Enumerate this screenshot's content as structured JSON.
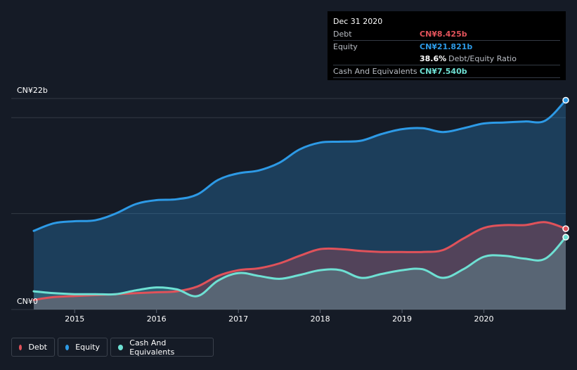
{
  "colors": {
    "background": "#151b26",
    "debt": "#e0525a",
    "equity": "#2d9ae6",
    "cash": "#6ee0d3",
    "gridline": "#333a44"
  },
  "tooltip": {
    "date": "Dec 31 2020",
    "debt_label": "Debt",
    "debt_value": "CN¥8.425b",
    "equity_label": "Equity",
    "equity_value": "CN¥21.821b",
    "ratio_value": "38.6%",
    "ratio_label": "Debt/Equity Ratio",
    "cash_label": "Cash And Equivalents",
    "cash_value": "CN¥7.540b"
  },
  "legend": {
    "debt": "Debt",
    "equity": "Equity",
    "cash": "Cash And Equivalents"
  },
  "chart_data": {
    "type": "area",
    "title": "",
    "xlabel": "",
    "ylabel": "",
    "y_top_label": "CN¥22b",
    "y_bottom_label": "CN¥0",
    "ylim": [
      0,
      22
    ],
    "xlim": [
      2014.5,
      2021.0
    ],
    "x_ticks": [
      "2015",
      "2016",
      "2017",
      "2018",
      "2019",
      "2020"
    ],
    "grid": true,
    "series": [
      {
        "name": "Equity",
        "color": "#2d9ae6",
        "x": [
          2014.5,
          2014.75,
          2015.0,
          2015.25,
          2015.5,
          2015.75,
          2016.0,
          2016.25,
          2016.5,
          2016.75,
          2017.0,
          2017.25,
          2017.5,
          2017.75,
          2018.0,
          2018.25,
          2018.5,
          2018.75,
          2019.0,
          2019.25,
          2019.5,
          2019.75,
          2020.0,
          2020.25,
          2020.5,
          2020.75,
          2021.0
        ],
        "values": [
          8.2,
          9.0,
          9.2,
          9.3,
          10.0,
          11.0,
          11.4,
          11.5,
          12.0,
          13.5,
          14.2,
          14.5,
          15.3,
          16.7,
          17.4,
          17.5,
          17.6,
          18.3,
          18.8,
          18.9,
          18.5,
          18.9,
          19.4,
          19.5,
          19.6,
          19.7,
          21.821
        ]
      },
      {
        "name": "Debt",
        "color": "#e0525a",
        "x": [
          2014.5,
          2014.75,
          2015.0,
          2015.25,
          2015.5,
          2015.75,
          2016.0,
          2016.25,
          2016.5,
          2016.75,
          2017.0,
          2017.25,
          2017.5,
          2017.75,
          2018.0,
          2018.25,
          2018.5,
          2018.75,
          2019.0,
          2019.25,
          2019.5,
          2019.75,
          2020.0,
          2020.25,
          2020.5,
          2020.75,
          2021.0
        ],
        "values": [
          1.0,
          1.3,
          1.4,
          1.5,
          1.6,
          1.7,
          1.8,
          1.9,
          2.4,
          3.5,
          4.1,
          4.3,
          4.8,
          5.6,
          6.3,
          6.3,
          6.1,
          6.0,
          6.0,
          6.0,
          6.2,
          7.4,
          8.5,
          8.8,
          8.8,
          9.1,
          8.425
        ]
      },
      {
        "name": "Cash And Equivalents",
        "color": "#6ee0d3",
        "x": [
          2014.5,
          2014.75,
          2015.0,
          2015.25,
          2015.5,
          2015.75,
          2016.0,
          2016.25,
          2016.5,
          2016.75,
          2017.0,
          2017.25,
          2017.5,
          2017.75,
          2018.0,
          2018.25,
          2018.5,
          2018.75,
          2019.0,
          2019.25,
          2019.5,
          2019.75,
          2020.0,
          2020.25,
          2020.5,
          2020.75,
          2021.0
        ],
        "values": [
          1.9,
          1.7,
          1.6,
          1.6,
          1.6,
          2.0,
          2.3,
          2.1,
          1.4,
          3.0,
          3.8,
          3.5,
          3.2,
          3.6,
          4.1,
          4.1,
          3.3,
          3.7,
          4.1,
          4.2,
          3.3,
          4.2,
          5.5,
          5.6,
          5.3,
          5.3,
          7.54
        ]
      }
    ]
  }
}
